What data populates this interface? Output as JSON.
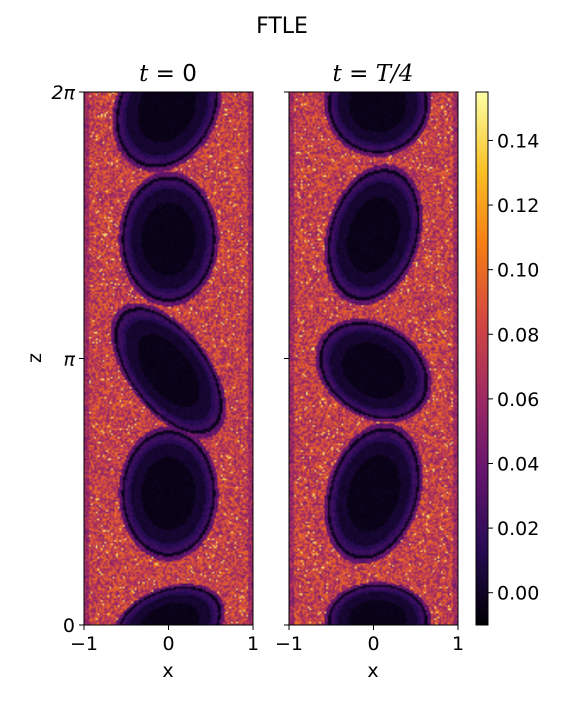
{
  "figure": {
    "title": "FTLE"
  },
  "chart_data": [
    {
      "type": "heatmap",
      "title_var": "t",
      "title_eq": " = ",
      "title_val": "0",
      "xlabel": "x",
      "ylabel": "z",
      "xlim": [
        -1,
        1
      ],
      "ylim": [
        0,
        6.283
      ],
      "x_ticks": [
        {
          "value": -1,
          "label": "−1"
        },
        {
          "value": 0,
          "label": "0"
        },
        {
          "value": 1,
          "label": "1"
        }
      ],
      "y_ticks": [
        {
          "value": 0,
          "label": "0"
        },
        {
          "value": 3.1416,
          "label": "π"
        },
        {
          "value": 6.2832,
          "label": "2π"
        }
      ],
      "background_level": 0.07,
      "vortices": [
        {
          "cx": -0.02,
          "cz": 6.1,
          "rx": 0.64,
          "rz": 0.72,
          "tilt_deg": 8
        },
        {
          "cx": 0.0,
          "cz": 4.55,
          "rx": 0.58,
          "rz": 0.78,
          "tilt_deg": 0
        },
        {
          "cx": 0.0,
          "cz": 3.0,
          "rx": 0.7,
          "rz": 0.62,
          "tilt_deg": -18
        },
        {
          "cx": 0.0,
          "cz": 1.55,
          "rx": 0.58,
          "rz": 0.78,
          "tilt_deg": 0
        },
        {
          "cx": 0.0,
          "cz": 0.0,
          "rx": 0.66,
          "rz": 0.45,
          "tilt_deg": 6
        }
      ]
    },
    {
      "type": "heatmap",
      "title_var": "t",
      "title_eq": " = ",
      "title_val": "T/4",
      "xlabel": "x",
      "ylabel": "",
      "xlim": [
        -1,
        1
      ],
      "ylim": [
        0,
        6.283
      ],
      "x_ticks": [
        {
          "value": -1,
          "label": "−1"
        },
        {
          "value": 0,
          "label": "0"
        },
        {
          "value": 1,
          "label": "1"
        }
      ],
      "y_ticks": [],
      "background_level": 0.07,
      "vortices": [
        {
          "cx": 0.05,
          "cz": 6.15,
          "rx": 0.62,
          "rz": 0.62,
          "tilt_deg": 0
        },
        {
          "cx": 0.0,
          "cz": 4.6,
          "rx": 0.58,
          "rz": 0.78,
          "tilt_deg": 12
        },
        {
          "cx": 0.0,
          "cz": 3.0,
          "rx": 0.68,
          "rz": 0.58,
          "tilt_deg": -6
        },
        {
          "cx": 0.0,
          "cz": 1.55,
          "rx": 0.58,
          "rz": 0.78,
          "tilt_deg": 12
        },
        {
          "cx": 0.05,
          "cz": 0.05,
          "rx": 0.62,
          "rz": 0.45,
          "tilt_deg": 0
        }
      ]
    }
  ],
  "colorbar": {
    "colormap": "inferno",
    "vmin": -0.01,
    "vmax": 0.155,
    "ticks": [
      {
        "value": 0.0,
        "label": "0.00"
      },
      {
        "value": 0.02,
        "label": "0.02"
      },
      {
        "value": 0.04,
        "label": "0.04"
      },
      {
        "value": 0.06,
        "label": "0.06"
      },
      {
        "value": 0.08,
        "label": "0.08"
      },
      {
        "value": 0.1,
        "label": "0.10"
      },
      {
        "value": 0.12,
        "label": "0.12"
      },
      {
        "value": 0.14,
        "label": "0.14"
      }
    ]
  }
}
